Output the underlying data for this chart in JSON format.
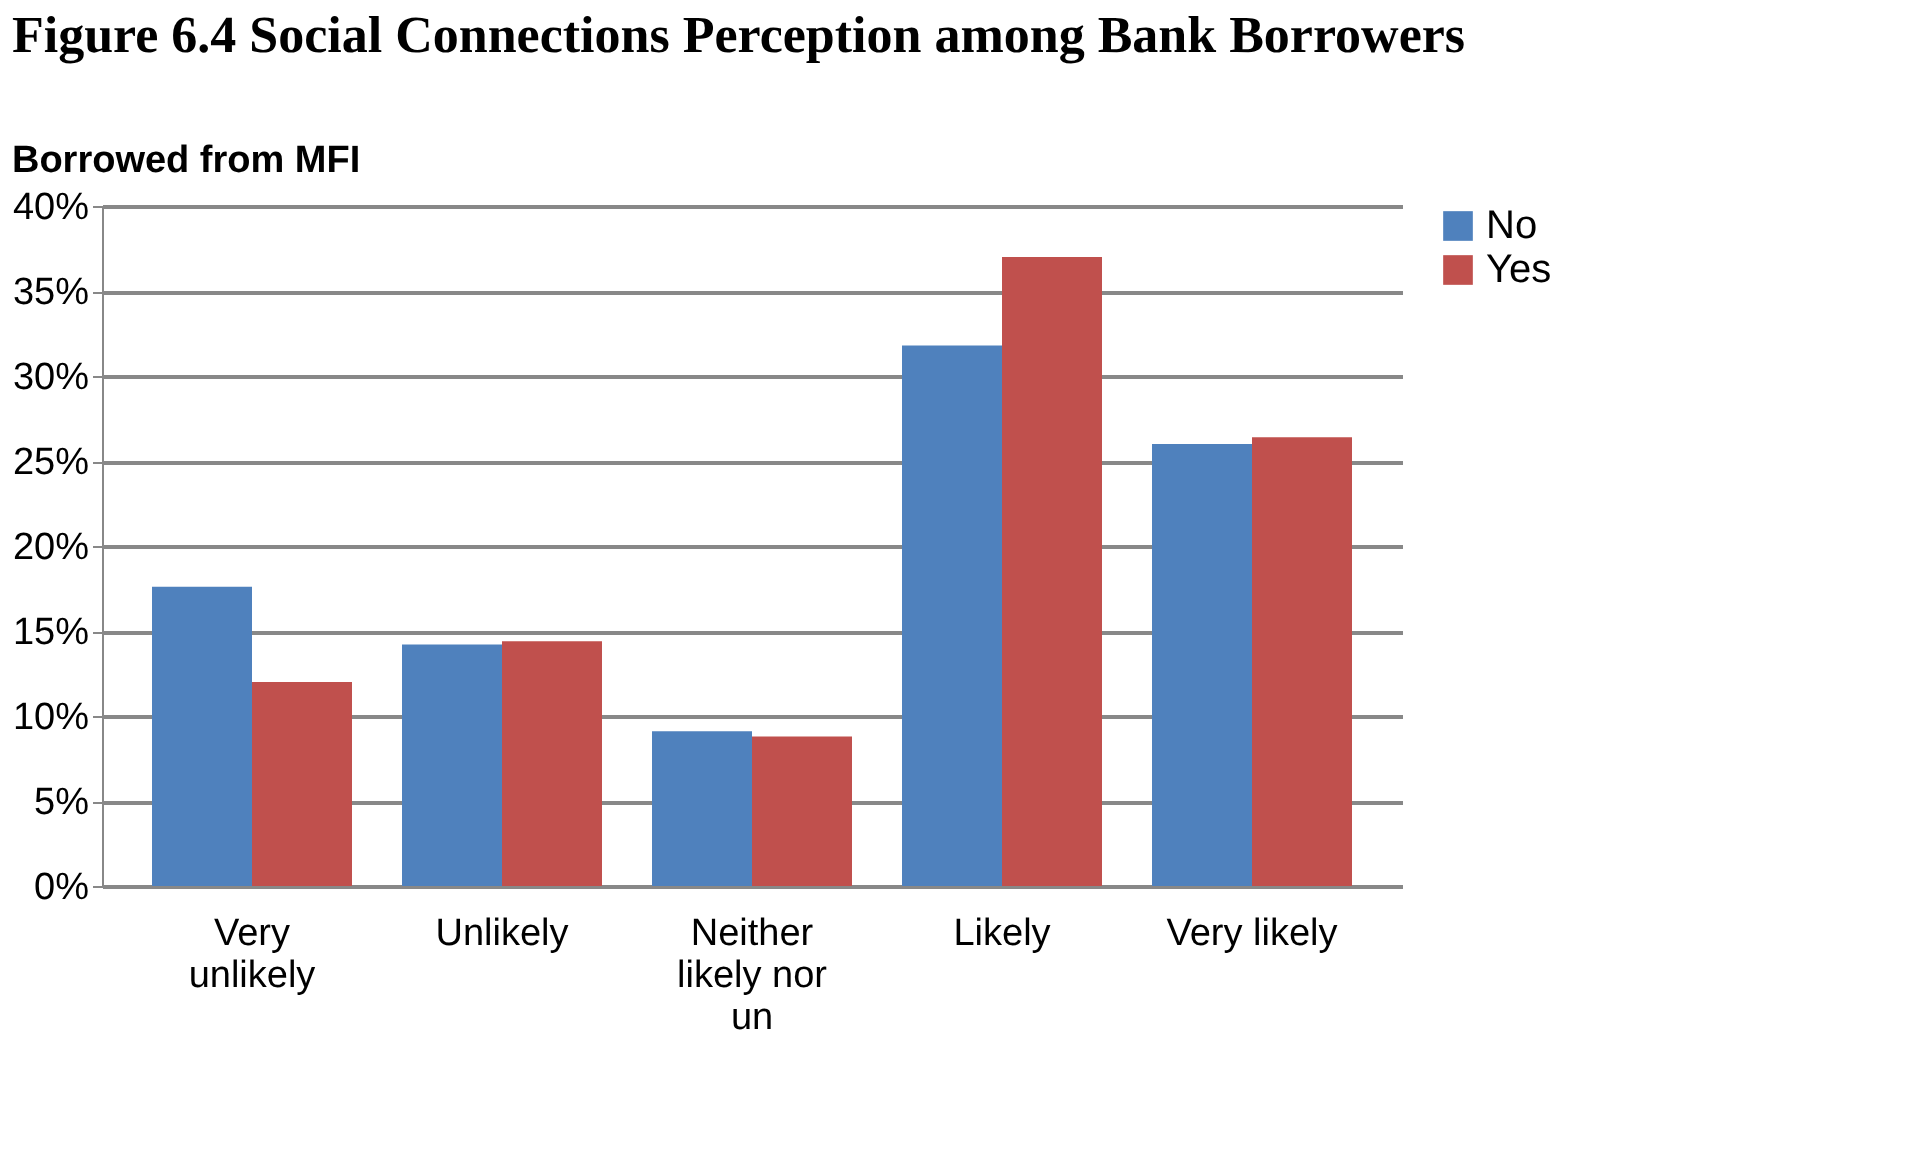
{
  "chart_data": {
    "type": "bar",
    "title": "Figure 6.4 Social Connections Perception among Bank Borrowers",
    "subtitle": "Borrowed from MFI",
    "categories": [
      "Very unlikely",
      "Unlikely",
      "Neither likely nor un",
      "Likely",
      "Very likely"
    ],
    "series": [
      {
        "name": "No",
        "color": "#4f81bd",
        "values": [
          17.6,
          14.2,
          9.1,
          31.8,
          26.0
        ]
      },
      {
        "name": "Yes",
        "color": "#c0504d",
        "values": [
          12.0,
          14.4,
          8.8,
          37.0,
          26.4
        ]
      }
    ],
    "ylim": [
      0,
      40
    ],
    "yticks": [
      {
        "value": 0,
        "label": "0%"
      },
      {
        "value": 5,
        "label": "5%"
      },
      {
        "value": 10,
        "label": "10%"
      },
      {
        "value": 15,
        "label": "15%"
      },
      {
        "value": 20,
        "label": "20%"
      },
      {
        "value": 25,
        "label": "25%"
      },
      {
        "value": 30,
        "label": "30%"
      },
      {
        "value": 35,
        "label": "35%"
      },
      {
        "value": 40,
        "label": "40%"
      }
    ],
    "grid": "y",
    "legend": "right"
  }
}
